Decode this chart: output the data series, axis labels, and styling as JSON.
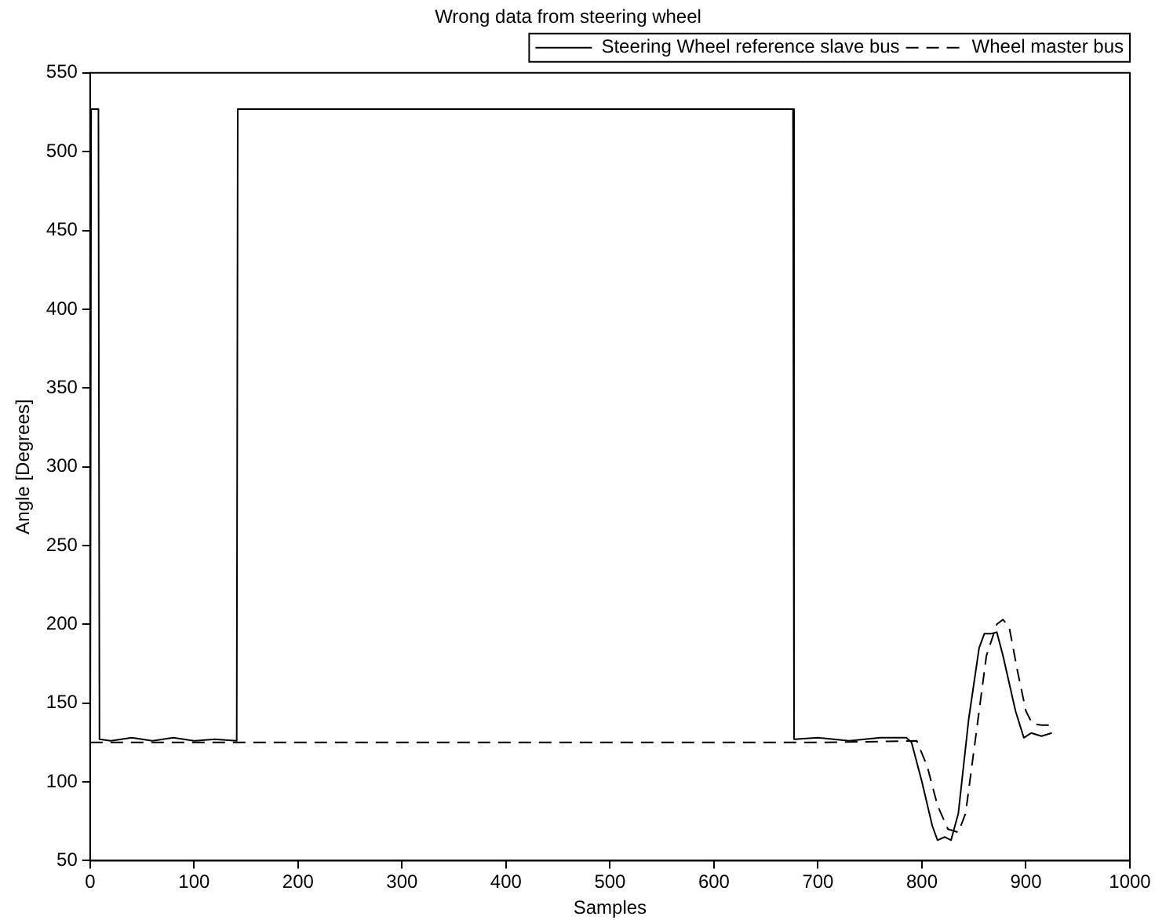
{
  "chart_data": {
    "type": "line",
    "title": "Wrong data from steering wheel",
    "xlabel": "Samples",
    "ylabel": "Angle [Degrees]",
    "xlim": [
      0,
      1000
    ],
    "xticks": [
      0,
      100,
      200,
      300,
      400,
      500,
      600,
      700,
      800,
      900,
      1000
    ],
    "ylim": [
      50,
      550
    ],
    "yticks": [
      50,
      100,
      150,
      200,
      250,
      300,
      350,
      400,
      450,
      500,
      550
    ],
    "grid": false,
    "legend": "top right",
    "marker": "none",
    "series": [
      {
        "name": "Steering Wheel reference slave bus",
        "color": "#000000",
        "line_style": "solid",
        "x": [
          0,
          1,
          8,
          9,
          20,
          40,
          60,
          80,
          100,
          120,
          141,
          142,
          676,
          677,
          700,
          730,
          760,
          785,
          790,
          800,
          810,
          815,
          822,
          828,
          835,
          845,
          855,
          860,
          866,
          872,
          878,
          890,
          898,
          905,
          915,
          925
        ],
        "values": [
          52,
          527,
          527,
          127,
          126,
          128,
          126,
          128,
          126,
          127,
          126,
          527,
          527,
          127,
          128,
          126,
          128,
          128,
          125,
          100,
          72,
          63,
          65,
          63,
          80,
          140,
          185,
          194,
          194,
          195,
          180,
          145,
          128,
          131,
          129,
          131
        ]
      },
      {
        "name": "Wheel master bus",
        "color": "#000000",
        "line_style": "dashed",
        "x": [
          0,
          100,
          200,
          300,
          400,
          500,
          600,
          700,
          795,
          805,
          815,
          825,
          835,
          842,
          852,
          862,
          872,
          878,
          884,
          892,
          900,
          906,
          915,
          925
        ],
        "values": [
          125,
          125,
          125,
          125,
          125,
          125,
          125,
          125,
          126,
          110,
          85,
          70,
          68,
          80,
          130,
          180,
          200,
          203,
          198,
          170,
          145,
          137,
          136,
          136
        ]
      }
    ]
  }
}
